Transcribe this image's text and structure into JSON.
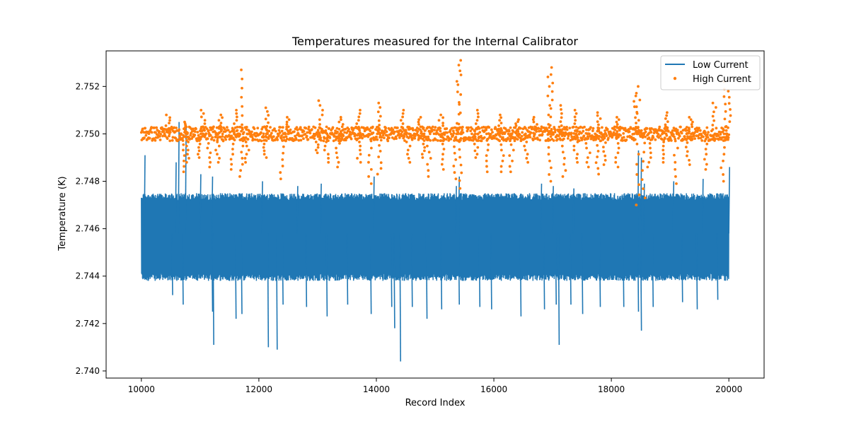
{
  "chart_data": {
    "type": "line",
    "title": "Temperatures measured for the Internal Calibrator",
    "xlabel": "Record Index",
    "ylabel": "Temperature (K)",
    "xlim": [
      9400,
      20600
    ],
    "ylim": [
      2.7397,
      2.7535
    ],
    "xticks": [
      10000,
      12000,
      14000,
      16000,
      18000,
      20000
    ],
    "yticks": [
      2.74,
      2.742,
      2.744,
      2.746,
      2.748,
      2.75,
      2.752
    ],
    "ytick_labels": [
      "2.740",
      "2.742",
      "2.744",
      "2.746",
      "2.748",
      "2.750",
      "2.752"
    ],
    "grid": false,
    "legend_position": "top-right",
    "series": [
      {
        "name": "Low Current",
        "style": "line",
        "color": "#1f77b4",
        "x_range": [
          10000,
          20000
        ],
        "band": [
          2.7438,
          2.7475
        ],
        "center": 2.7458,
        "spikes_low": [
          [
            10520,
            2.7432
          ],
          [
            10700,
            2.7428
          ],
          [
            11200,
            2.7425
          ],
          [
            11220,
            2.7411
          ],
          [
            11600,
            2.7422
          ],
          [
            11700,
            2.7424
          ],
          [
            12150,
            2.741
          ],
          [
            12300,
            2.7409
          ],
          [
            12400,
            2.7428
          ],
          [
            12800,
            2.7427
          ],
          [
            13150,
            2.7423
          ],
          [
            13500,
            2.7428
          ],
          [
            13900,
            2.7424
          ],
          [
            14250,
            2.7427
          ],
          [
            14300,
            2.7418
          ],
          [
            14400,
            2.7404
          ],
          [
            14600,
            2.7427
          ],
          [
            14850,
            2.7422
          ],
          [
            15100,
            2.7426
          ],
          [
            15400,
            2.7428
          ],
          [
            15750,
            2.7427
          ],
          [
            15950,
            2.7426
          ],
          [
            16450,
            2.7423
          ],
          [
            16850,
            2.7426
          ],
          [
            17050,
            2.7428
          ],
          [
            17100,
            2.7411
          ],
          [
            17300,
            2.7428
          ],
          [
            17500,
            2.7424
          ],
          [
            17800,
            2.7427
          ],
          [
            18200,
            2.7427
          ],
          [
            18450,
            2.7425
          ],
          [
            18500,
            2.7417
          ],
          [
            18700,
            2.7427
          ],
          [
            19200,
            2.7429
          ],
          [
            19450,
            2.7426
          ],
          [
            19800,
            2.743
          ]
        ],
        "spikes_high": [
          [
            10050,
            2.7491
          ],
          [
            10580,
            2.7488
          ],
          [
            10630,
            2.7505
          ],
          [
            10750,
            2.7504
          ],
          [
            11000,
            2.7483
          ],
          [
            11200,
            2.7482
          ],
          [
            12050,
            2.748
          ],
          [
            12650,
            2.7478
          ],
          [
            13050,
            2.7479
          ],
          [
            13950,
            2.7482
          ],
          [
            15400,
            2.7482
          ],
          [
            15350,
            2.7478
          ],
          [
            16800,
            2.7479
          ],
          [
            17000,
            2.7478
          ],
          [
            17350,
            2.7477
          ],
          [
            18450,
            2.7493
          ],
          [
            18500,
            2.749
          ],
          [
            18550,
            2.7479
          ],
          [
            19050,
            2.748
          ],
          [
            19550,
            2.7481
          ],
          [
            20000,
            2.7486
          ]
        ]
      },
      {
        "name": "High Current",
        "style": "scatter",
        "color": "#ff7f0e",
        "x_range": [
          10000,
          20000
        ],
        "band": [
          2.7497,
          2.7503
        ],
        "center": 2.75,
        "dips": [
          [
            10700,
            2.7484
          ],
          [
            10800,
            2.7488
          ],
          [
            11000,
            2.749
          ],
          [
            11150,
            2.7486
          ],
          [
            11300,
            2.7488
          ],
          [
            11550,
            2.7485
          ],
          [
            11700,
            2.7482
          ],
          [
            11800,
            2.7488
          ],
          [
            12100,
            2.749
          ],
          [
            12400,
            2.7481
          ],
          [
            13000,
            2.7492
          ],
          [
            13150,
            2.7488
          ],
          [
            13350,
            2.7486
          ],
          [
            13700,
            2.7488
          ],
          [
            13900,
            2.7479
          ],
          [
            14050,
            2.7483
          ],
          [
            14550,
            2.7488
          ],
          [
            14800,
            2.749
          ],
          [
            14900,
            2.7482
          ],
          [
            15150,
            2.7485
          ],
          [
            15350,
            2.7481
          ],
          [
            15420,
            2.7477
          ],
          [
            15700,
            2.749
          ],
          [
            15900,
            2.7484
          ],
          [
            16150,
            2.7484
          ],
          [
            16300,
            2.7484
          ],
          [
            16550,
            2.7488
          ],
          [
            16950,
            2.748
          ],
          [
            17200,
            2.7482
          ],
          [
            17400,
            2.7488
          ],
          [
            17600,
            2.7486
          ],
          [
            17750,
            2.7483
          ],
          [
            17900,
            2.7487
          ],
          [
            18100,
            2.7486
          ],
          [
            18450,
            2.747
          ],
          [
            18550,
            2.7473
          ],
          [
            18650,
            2.7486
          ],
          [
            18900,
            2.7488
          ],
          [
            19100,
            2.7479
          ],
          [
            19300,
            2.7487
          ],
          [
            19600,
            2.7485
          ],
          [
            19900,
            2.748
          ]
        ],
        "peaks": [
          [
            10450,
            2.7508
          ],
          [
            10750,
            2.7505
          ],
          [
            11050,
            2.751
          ],
          [
            11350,
            2.7508
          ],
          [
            11600,
            2.751
          ],
          [
            11720,
            2.7527
          ],
          [
            12150,
            2.7511
          ],
          [
            12500,
            2.7507
          ],
          [
            13050,
            2.7514
          ],
          [
            13400,
            2.7507
          ],
          [
            13700,
            2.751
          ],
          [
            14050,
            2.7513
          ],
          [
            14450,
            2.751
          ],
          [
            14750,
            2.7507
          ],
          [
            15100,
            2.7508
          ],
          [
            15400,
            2.7531
          ],
          [
            15410,
            2.7529
          ],
          [
            15700,
            2.751
          ],
          [
            16100,
            2.7508
          ],
          [
            16400,
            2.7506
          ],
          [
            16700,
            2.7507
          ],
          [
            16950,
            2.7528
          ],
          [
            16970,
            2.7525
          ],
          [
            17150,
            2.7512
          ],
          [
            17400,
            2.751
          ],
          [
            17800,
            2.7509
          ],
          [
            18100,
            2.7507
          ],
          [
            18400,
            2.7516
          ],
          [
            18450,
            2.752
          ],
          [
            18950,
            2.7509
          ],
          [
            19350,
            2.7507
          ],
          [
            19750,
            2.7513
          ],
          [
            19950,
            2.7522
          ],
          [
            20000,
            2.7518
          ]
        ]
      }
    ]
  }
}
